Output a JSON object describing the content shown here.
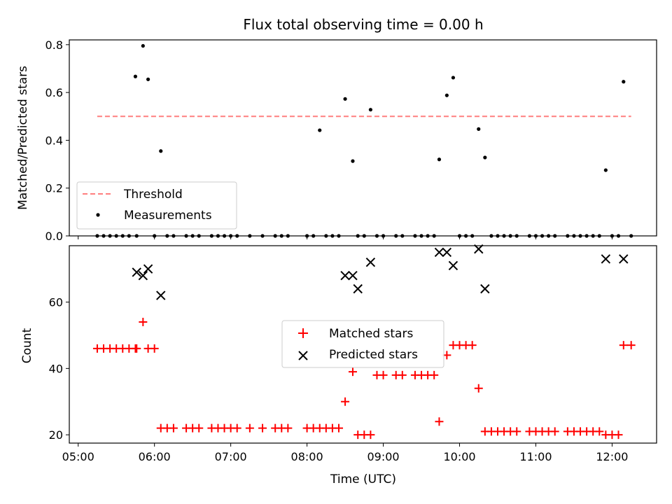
{
  "title": "Flux total observing time = 0.00 h",
  "chart_data": [
    {
      "type": "scatter",
      "ylabel": "Matched/Predicted stars",
      "ylim": [
        0,
        0.82
      ],
      "xlim": [
        "04:53",
        "12:35"
      ],
      "y_ticks": [
        0.0,
        0.2,
        0.4,
        0.6,
        0.8
      ],
      "y_tick_labels": [
        "0.0",
        "0.2",
        "0.4",
        "0.6",
        "0.8"
      ],
      "legend_position": "lower-left",
      "series": [
        {
          "name": "Threshold",
          "style": "dashed-line",
          "color": "#ff7f7f",
          "x": [
            "05:15",
            "12:15"
          ],
          "y": [
            0.5,
            0.5
          ]
        },
        {
          "name": "Measurements",
          "style": "dot",
          "color": "#000000",
          "x": [
            "05:15",
            "05:20",
            "05:25",
            "05:30",
            "05:35",
            "05:40",
            "05:45",
            "05:46",
            "05:51",
            "05:55",
            "06:00",
            "06:05",
            "06:10",
            "06:15",
            "06:25",
            "06:30",
            "06:35",
            "06:45",
            "06:50",
            "06:55",
            "07:00",
            "07:05",
            "07:15",
            "07:25",
            "07:35",
            "07:40",
            "07:45",
            "08:00",
            "08:05",
            "08:10",
            "08:15",
            "08:20",
            "08:25",
            "08:30",
            "08:36",
            "08:40",
            "08:45",
            "08:50",
            "08:55",
            "09:00",
            "09:10",
            "09:15",
            "09:25",
            "09:30",
            "09:35",
            "09:40",
            "09:44",
            "09:50",
            "09:55",
            "10:00",
            "10:05",
            "10:10",
            "10:15",
            "10:20",
            "10:25",
            "10:30",
            "10:35",
            "10:40",
            "10:45",
            "10:55",
            "11:00",
            "11:05",
            "11:10",
            "11:15",
            "11:25",
            "11:30",
            "11:35",
            "11:40",
            "11:45",
            "11:50",
            "11:55",
            "12:00",
            "12:05",
            "12:09",
            "12:15"
          ],
          "y": [
            0,
            0,
            0,
            0,
            0,
            0,
            0.667,
            0,
            0.795,
            0.655,
            0,
            0.355,
            0,
            0,
            0,
            0,
            0,
            0,
            0,
            0,
            0,
            0,
            0,
            0,
            0,
            0,
            0,
            0,
            0,
            0.442,
            0,
            0,
            0,
            0.573,
            0.313,
            0,
            0,
            0.528,
            0,
            0,
            0,
            0,
            0,
            0,
            0,
            0,
            0.32,
            0.588,
            0.662,
            0,
            0,
            0,
            0.447,
            0.328,
            0,
            0,
            0,
            0,
            0,
            0,
            0,
            0,
            0,
            0,
            0,
            0,
            0,
            0,
            0,
            0,
            0.275,
            0,
            0,
            0.645,
            0
          ]
        }
      ]
    },
    {
      "type": "scatter",
      "xlabel": "Time (UTC)",
      "ylabel": "Count",
      "ylim": [
        17.5,
        77
      ],
      "xlim": [
        "04:53",
        "12:35"
      ],
      "x_tick_labels": [
        "05:00",
        "06:00",
        "07:00",
        "08:00",
        "09:00",
        "10:00",
        "11:00",
        "12:00"
      ],
      "y_ticks": [
        20,
        40,
        60
      ],
      "y_tick_labels": [
        "20",
        "40",
        "60"
      ],
      "legend_position": "center",
      "series": [
        {
          "name": "Matched stars",
          "marker": "plus",
          "color": "#ff0000",
          "x": [
            "05:15",
            "05:20",
            "05:25",
            "05:30",
            "05:35",
            "05:40",
            "05:45",
            "05:46",
            "05:51",
            "05:55",
            "06:00",
            "06:05",
            "06:10",
            "06:15",
            "06:25",
            "06:30",
            "06:35",
            "06:45",
            "06:50",
            "06:55",
            "07:00",
            "07:05",
            "07:15",
            "07:25",
            "07:35",
            "07:40",
            "07:45",
            "08:00",
            "08:05",
            "08:10",
            "08:15",
            "08:20",
            "08:25",
            "08:30",
            "08:36",
            "08:40",
            "08:45",
            "08:50",
            "08:55",
            "09:00",
            "09:10",
            "09:15",
            "09:25",
            "09:30",
            "09:35",
            "09:40",
            "09:44",
            "09:50",
            "09:55",
            "10:00",
            "10:05",
            "10:10",
            "10:15",
            "10:20",
            "10:25",
            "10:30",
            "10:35",
            "10:40",
            "10:45",
            "10:55",
            "11:00",
            "11:05",
            "11:10",
            "11:15",
            "11:25",
            "11:30",
            "11:35",
            "11:40",
            "11:45",
            "11:50",
            "11:55",
            "12:00",
            "12:05",
            "12:09",
            "12:15"
          ],
          "y": [
            46,
            46,
            46,
            46,
            46,
            46,
            46,
            46,
            54,
            46,
            46,
            22,
            22,
            22,
            22,
            22,
            22,
            22,
            22,
            22,
            22,
            22,
            22,
            22,
            22,
            22,
            22,
            22,
            22,
            22,
            22,
            22,
            22,
            30,
            39,
            20,
            20,
            20,
            38,
            38,
            38,
            38,
            38,
            38,
            38,
            38,
            24,
            44,
            47,
            47,
            47,
            47,
            34,
            21,
            21,
            21,
            21,
            21,
            21,
            21,
            21,
            21,
            21,
            21,
            21,
            21,
            21,
            21,
            21,
            21,
            20,
            20,
            20,
            47,
            47
          ]
        },
        {
          "name": "Predicted stars",
          "marker": "x",
          "color": "#000000",
          "x": [
            "05:46",
            "05:51",
            "05:55",
            "06:05",
            "08:30",
            "08:36",
            "08:40",
            "08:50",
            "09:44",
            "09:50",
            "09:55",
            "10:15",
            "10:20",
            "11:55",
            "12:09"
          ],
          "y": [
            69,
            68,
            70,
            62,
            68,
            68,
            64,
            72,
            75,
            75,
            71,
            76,
            64,
            73,
            73
          ]
        }
      ]
    }
  ]
}
